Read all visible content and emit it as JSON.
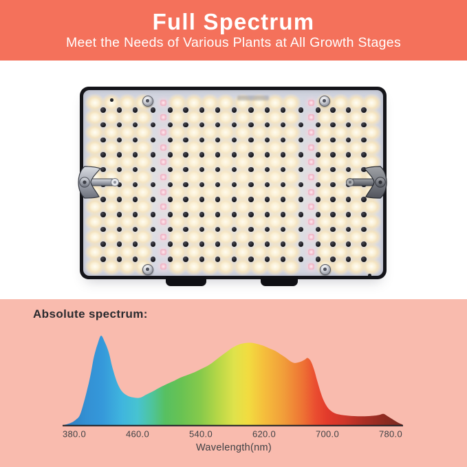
{
  "banner": {
    "title": "Full Spectrum",
    "subtitle": "Meet the Needs of Various Plants at All Growth Stages",
    "bg_color": "#F4715B",
    "text_color": "#FFFFFF"
  },
  "product": {
    "name": "LED grow light panel (back-lit quantum board, top view)",
    "backdrop_color": "#FFFFFF",
    "frame_color": "#141419",
    "pcb_color": "#D8DAE4",
    "warm_led_color": "#FAF0D6",
    "pink_led_color": "#F2BCCB",
    "hole_color": "#17171C",
    "screw_color": "#B9BCC4",
    "grid": {
      "rows": 12,
      "column_slots": 18,
      "warm_led_columns": 16,
      "pink_column_indexes": [
        4,
        13
      ],
      "hole_columns": 17,
      "hole_rows": 11
    },
    "screw_count": 4,
    "mounting_bracket_count": 2,
    "bottom_port_count": 2
  },
  "spectrum_section": {
    "heading": "Absolute spectrum:",
    "bg_color": "#F9BBAE"
  },
  "chart_data": {
    "type": "area",
    "title": "Absolute spectrum:",
    "xlabel": "Wavelength(nm)",
    "ylabel": "",
    "x_tick_labels": [
      "380.0",
      "460.0",
      "540.0",
      "620.0",
      "700.0",
      "780.0"
    ],
    "x_tick_values": [
      380,
      460,
      540,
      620,
      700,
      780
    ],
    "x_range_nm": [
      366,
      795
    ],
    "y_range": [
      0,
      1
    ],
    "grid": false,
    "legend": false,
    "axis_color": "#26262A",
    "peaks": [
      {
        "nm": 414,
        "intensity": 1.0,
        "note": "blue peak"
      },
      {
        "nm": 603,
        "intensity": 0.92,
        "note": "broad warm peak"
      },
      {
        "nm": 675,
        "intensity": 0.75,
        "note": "deep red bump"
      }
    ],
    "series": [
      {
        "name": "absolute spectral intensity",
        "points": [
          [
            366,
            0
          ],
          [
            371,
            0.01
          ],
          [
            377,
            0.03
          ],
          [
            382,
            0.06
          ],
          [
            387,
            0.11
          ],
          [
            392,
            0.25
          ],
          [
            397,
            0.42
          ],
          [
            401,
            0.58
          ],
          [
            405,
            0.77
          ],
          [
            410,
            0.92
          ],
          [
            414,
            1.0
          ],
          [
            419,
            0.92
          ],
          [
            424,
            0.8
          ],
          [
            428,
            0.65
          ],
          [
            434,
            0.48
          ],
          [
            440,
            0.38
          ],
          [
            447,
            0.33
          ],
          [
            454,
            0.31
          ],
          [
            463,
            0.305
          ],
          [
            471,
            0.34
          ],
          [
            480,
            0.38
          ],
          [
            486,
            0.41
          ],
          [
            495,
            0.45
          ],
          [
            505,
            0.49
          ],
          [
            514,
            0.53
          ],
          [
            523,
            0.56
          ],
          [
            532,
            0.59
          ],
          [
            540,
            0.625
          ],
          [
            548,
            0.66
          ],
          [
            555,
            0.7
          ],
          [
            563,
            0.755
          ],
          [
            572,
            0.815
          ],
          [
            580,
            0.865
          ],
          [
            588,
            0.9
          ],
          [
            595,
            0.915
          ],
          [
            603,
            0.92
          ],
          [
            610,
            0.91
          ],
          [
            618,
            0.89
          ],
          [
            626,
            0.86
          ],
          [
            634,
            0.83
          ],
          [
            641,
            0.79
          ],
          [
            647,
            0.755
          ],
          [
            653,
            0.715
          ],
          [
            658,
            0.695
          ],
          [
            663,
            0.7
          ],
          [
            668,
            0.715
          ],
          [
            672,
            0.735
          ],
          [
            675,
            0.75
          ],
          [
            679,
            0.715
          ],
          [
            683,
            0.625
          ],
          [
            687,
            0.5
          ],
          [
            691,
            0.38
          ],
          [
            695,
            0.28
          ],
          [
            700,
            0.2
          ],
          [
            705,
            0.155
          ],
          [
            710,
            0.13
          ],
          [
            717,
            0.115
          ],
          [
            725,
            0.105
          ],
          [
            734,
            0.1
          ],
          [
            743,
            0.098
          ],
          [
            752,
            0.1
          ],
          [
            760,
            0.105
          ],
          [
            766,
            0.115
          ],
          [
            771,
            0.125
          ],
          [
            776,
            0.1
          ],
          [
            780,
            0.078
          ],
          [
            786,
            0.045
          ],
          [
            791,
            0.02
          ],
          [
            795,
            0.005
          ]
        ]
      }
    ],
    "gradient_stops": [
      {
        "nm": 366,
        "color": "#2E7CBF"
      },
      {
        "nm": 395,
        "color": "#3390D3"
      },
      {
        "nm": 415,
        "color": "#3598DA"
      },
      {
        "nm": 440,
        "color": "#3FB5DE"
      },
      {
        "nm": 460,
        "color": "#47C3D1"
      },
      {
        "nm": 478,
        "color": "#4EC49C"
      },
      {
        "nm": 495,
        "color": "#57C061"
      },
      {
        "nm": 515,
        "color": "#68C253"
      },
      {
        "nm": 540,
        "color": "#87CA4B"
      },
      {
        "nm": 560,
        "color": "#B3D647"
      },
      {
        "nm": 582,
        "color": "#DFE24B"
      },
      {
        "nm": 600,
        "color": "#F2DC40"
      },
      {
        "nm": 620,
        "color": "#F5BE3C"
      },
      {
        "nm": 645,
        "color": "#F19D3A"
      },
      {
        "nm": 668,
        "color": "#EE7434"
      },
      {
        "nm": 685,
        "color": "#EA4D30"
      },
      {
        "nm": 700,
        "color": "#E23A2B"
      },
      {
        "nm": 720,
        "color": "#D0362A"
      },
      {
        "nm": 745,
        "color": "#AC2F25"
      },
      {
        "nm": 775,
        "color": "#8B2B21"
      },
      {
        "nm": 795,
        "color": "#7C2920"
      }
    ]
  }
}
